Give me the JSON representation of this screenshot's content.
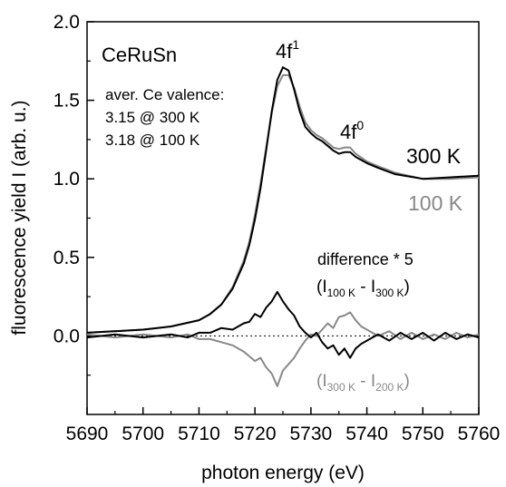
{
  "chart_data": {
    "type": "line",
    "xlabel": "photon energy (eV)",
    "ylabel": "fluorescence yield I (arb. u.)",
    "xlim": [
      5690,
      5760
    ],
    "ylim": [
      -0.5,
      2.0
    ],
    "xticks": [
      5690,
      5700,
      5710,
      5720,
      5730,
      5740,
      5750,
      5760
    ],
    "yticks": [
      0.0,
      0.5,
      1.0,
      1.5,
      2.0
    ],
    "grid": false,
    "zero_line": 0.0,
    "colors": {
      "t300": "#000000",
      "t100": "#888888"
    },
    "series": [
      {
        "name": "300 K",
        "color": "#000000",
        "x": [
          5690,
          5700,
          5705,
          5710,
          5712,
          5714,
          5716,
          5718,
          5719,
          5720,
          5721,
          5722,
          5723,
          5724,
          5725,
          5726,
          5727,
          5728,
          5729,
          5730,
          5731,
          5732,
          5733,
          5734,
          5735,
          5736,
          5737,
          5738,
          5740,
          5742,
          5745,
          5750,
          5755,
          5760
        ],
        "y": [
          0.02,
          0.04,
          0.06,
          0.1,
          0.14,
          0.2,
          0.3,
          0.46,
          0.58,
          0.74,
          0.94,
          1.18,
          1.43,
          1.63,
          1.71,
          1.69,
          1.57,
          1.43,
          1.33,
          1.29,
          1.26,
          1.24,
          1.21,
          1.18,
          1.16,
          1.17,
          1.17,
          1.14,
          1.1,
          1.07,
          1.03,
          1.0,
          1.01,
          1.02
        ]
      },
      {
        "name": "100 K",
        "color": "#888888",
        "x": [
          5690,
          5700,
          5705,
          5710,
          5712,
          5714,
          5716,
          5718,
          5719,
          5720,
          5721,
          5722,
          5723,
          5724,
          5725,
          5726,
          5727,
          5728,
          5729,
          5730,
          5731,
          5732,
          5733,
          5734,
          5735,
          5736,
          5737,
          5738,
          5740,
          5742,
          5745,
          5750,
          5755,
          5760
        ],
        "y": [
          0.02,
          0.04,
          0.06,
          0.1,
          0.14,
          0.2,
          0.31,
          0.48,
          0.6,
          0.77,
          0.97,
          1.2,
          1.42,
          1.59,
          1.66,
          1.66,
          1.58,
          1.46,
          1.36,
          1.31,
          1.28,
          1.26,
          1.23,
          1.2,
          1.19,
          1.2,
          1.2,
          1.16,
          1.11,
          1.08,
          1.04,
          1.0,
          1.0,
          1.01
        ]
      },
      {
        "name": "(I100 K - I300 K)",
        "color": "#000000",
        "x": [
          5690,
          5695,
          5700,
          5705,
          5708,
          5710,
          5712,
          5714,
          5716,
          5718,
          5719,
          5720,
          5721,
          5722,
          5723,
          5724,
          5725,
          5726,
          5727,
          5728,
          5729,
          5730,
          5731,
          5732,
          5733,
          5734,
          5735,
          5736,
          5737,
          5738,
          5739,
          5740,
          5742,
          5744,
          5746,
          5748,
          5750,
          5752,
          5754,
          5756,
          5758,
          5760
        ],
        "y": [
          -0.01,
          0.01,
          -0.01,
          0.01,
          -0.01,
          0.02,
          0.02,
          0.05,
          0.04,
          0.08,
          0.09,
          0.14,
          0.12,
          0.18,
          0.22,
          0.28,
          0.22,
          0.17,
          0.13,
          0.06,
          0.02,
          -0.01,
          0.02,
          -0.04,
          -0.08,
          -0.06,
          -0.12,
          -0.08,
          -0.14,
          -0.08,
          -0.05,
          -0.03,
          0.01,
          -0.03,
          0.02,
          -0.02,
          0.02,
          -0.03,
          0.02,
          -0.02,
          0.01,
          -0.01
        ]
      },
      {
        "name": "(I300 K - I200 K)",
        "color": "#888888",
        "x": [
          5690,
          5695,
          5700,
          5705,
          5708,
          5710,
          5712,
          5714,
          5716,
          5718,
          5719,
          5720,
          5721,
          5722,
          5723,
          5724,
          5725,
          5726,
          5727,
          5728,
          5729,
          5730,
          5731,
          5732,
          5733,
          5734,
          5735,
          5736,
          5737,
          5738,
          5739,
          5740,
          5742,
          5744,
          5746,
          5748,
          5750,
          5752,
          5754,
          5756,
          5758,
          5760
        ],
        "y": [
          0.01,
          -0.01,
          0.01,
          -0.01,
          0.01,
          -0.02,
          -0.02,
          -0.04,
          -0.06,
          -0.1,
          -0.13,
          -0.16,
          -0.14,
          -0.2,
          -0.24,
          -0.32,
          -0.22,
          -0.18,
          -0.14,
          -0.08,
          -0.03,
          0.01,
          0.0,
          0.04,
          0.08,
          0.05,
          0.12,
          0.13,
          0.15,
          0.1,
          0.06,
          0.04,
          0.0,
          0.03,
          -0.02,
          0.02,
          -0.02,
          0.01,
          -0.02,
          0.02,
          -0.01,
          0.01
        ]
      }
    ],
    "annotations": {
      "compound": "CeRuSn",
      "valence_title": "aver. Ce valence:",
      "valence_300": "3.15 @ 300 K",
      "valence_100": "3.18 @ 100 K",
      "peak1_base": "4f",
      "peak1_sup": "1",
      "peak2_base": "4f",
      "peak2_sup": "0",
      "label_300": "300 K",
      "label_100": "100 K",
      "diff_title": "difference * 5",
      "diff1_open": "(I",
      "diff1_sub_a": "100 K",
      "diff1_mid": " - I",
      "diff1_sub_b": "300 K",
      "diff1_close": ")",
      "diff2_open": "(I",
      "diff2_sub_a": "300 K",
      "diff2_mid": " - I",
      "diff2_sub_b": "200 K",
      "diff2_close": ")"
    }
  }
}
